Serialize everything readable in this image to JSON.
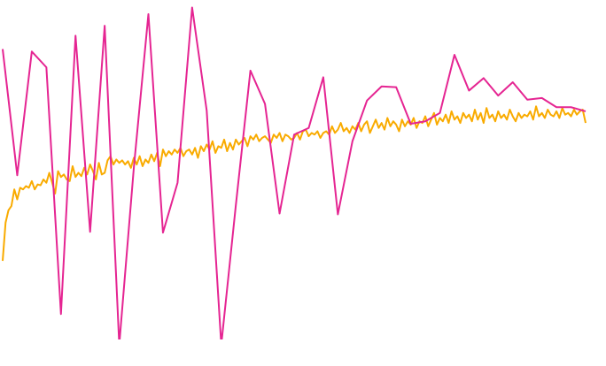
{
  "chart_data": {
    "type": "line",
    "xlim": [
      0,
      200
    ],
    "xticks": [
      0,
      50,
      100,
      150,
      200
    ],
    "ylim": [
      -0.106,
      3.98
    ],
    "yticks": [
      0,
      1,
      2,
      3
    ],
    "grid": true,
    "series": [
      {
        "color": "#f9ab00",
        "x": [
          0,
          1,
          2,
          3,
          4,
          5,
          6,
          7,
          8,
          9,
          10,
          11,
          12,
          13,
          14,
          15,
          16,
          17,
          18,
          19,
          20,
          21,
          22,
          23,
          24,
          25,
          26,
          27,
          28,
          29,
          30,
          31,
          32,
          33,
          34,
          35,
          36,
          37,
          38,
          39,
          40,
          41,
          42,
          43,
          44,
          45,
          46,
          47,
          48,
          49,
          50,
          51,
          52,
          53,
          54,
          55,
          56,
          57,
          58,
          59,
          60,
          61,
          62,
          63,
          64,
          65,
          66,
          67,
          68,
          69,
          70,
          71,
          72,
          73,
          74,
          75,
          76,
          77,
          78,
          79,
          80,
          81,
          82,
          83,
          84,
          85,
          86,
          87,
          88,
          89,
          90,
          91,
          92,
          93,
          94,
          95,
          96,
          97,
          98,
          99,
          100,
          101,
          102,
          103,
          104,
          105,
          106,
          107,
          108,
          109,
          110,
          111,
          112,
          113,
          114,
          115,
          116,
          117,
          118,
          119,
          120,
          121,
          122,
          123,
          124,
          125,
          126,
          127,
          128,
          129,
          130,
          131,
          132,
          133,
          134,
          135,
          136,
          137,
          138,
          139,
          140,
          141,
          142,
          143,
          144,
          145,
          146,
          147,
          148,
          149,
          150,
          151,
          152,
          153,
          154,
          155,
          156,
          157,
          158,
          159,
          160,
          161,
          162,
          163,
          164,
          165,
          166,
          167,
          168,
          169,
          170,
          171,
          172,
          173,
          174,
          175,
          176,
          177,
          178,
          179,
          180,
          181,
          182,
          183,
          184,
          185,
          186,
          187,
          188,
          189,
          190,
          191,
          192,
          193,
          194,
          195,
          196,
          197,
          198,
          199,
          200
        ],
        "values": [
          0.84,
          1.3,
          1.45,
          1.5,
          1.7,
          1.58,
          1.72,
          1.7,
          1.74,
          1.72,
          1.8,
          1.7,
          1.76,
          1.75,
          1.82,
          1.78,
          1.9,
          1.78,
          1.65,
          1.92,
          1.85,
          1.88,
          1.82,
          1.8,
          1.98,
          1.85,
          1.9,
          1.86,
          1.96,
          1.88,
          2.0,
          1.92,
          1.82,
          2.02,
          1.88,
          1.9,
          2.05,
          2.1,
          2.0,
          2.06,
          2.02,
          2.05,
          2.0,
          2.04,
          1.96,
          2.08,
          2.0,
          2.1,
          1.98,
          2.06,
          2.02,
          2.12,
          2.04,
          2.14,
          1.98,
          2.18,
          2.1,
          2.16,
          2.12,
          2.18,
          2.14,
          2.2,
          2.1,
          2.16,
          2.18,
          2.12,
          2.2,
          2.08,
          2.22,
          2.16,
          2.24,
          2.18,
          2.28,
          2.14,
          2.22,
          2.2,
          2.3,
          2.16,
          2.26,
          2.18,
          2.3,
          2.24,
          2.28,
          2.32,
          2.22,
          2.34,
          2.3,
          2.36,
          2.28,
          2.32,
          2.34,
          2.3,
          2.26,
          2.36,
          2.32,
          2.38,
          2.28,
          2.36,
          2.34,
          2.3,
          2.32,
          2.38,
          2.3,
          2.4,
          2.42,
          2.34,
          2.38,
          2.36,
          2.4,
          2.32,
          2.38,
          2.4,
          2.36,
          2.46,
          2.38,
          2.42,
          2.5,
          2.4,
          2.44,
          2.38,
          2.46,
          2.42,
          2.5,
          2.4,
          2.48,
          2.52,
          2.38,
          2.46,
          2.54,
          2.44,
          2.5,
          2.42,
          2.56,
          2.46,
          2.52,
          2.48,
          2.4,
          2.54,
          2.46,
          2.52,
          2.48,
          2.56,
          2.44,
          2.52,
          2.5,
          2.58,
          2.46,
          2.54,
          2.62,
          2.48,
          2.56,
          2.52,
          2.6,
          2.5,
          2.64,
          2.54,
          2.58,
          2.5,
          2.62,
          2.56,
          2.6,
          2.52,
          2.66,
          2.54,
          2.62,
          2.5,
          2.68,
          2.56,
          2.6,
          2.52,
          2.64,
          2.56,
          2.6,
          2.54,
          2.66,
          2.58,
          2.52,
          2.62,
          2.56,
          2.6,
          2.58,
          2.64,
          2.54,
          2.7,
          2.58,
          2.62,
          2.56,
          2.66,
          2.6,
          2.58,
          2.64,
          2.56,
          2.68,
          2.6,
          2.62,
          2.58,
          2.66,
          2.6,
          2.64,
          2.66,
          2.5
        ]
      },
      {
        "color": "#e52592",
        "x": [
          0,
          5,
          10,
          15,
          20,
          25,
          30,
          35,
          40,
          45,
          50,
          55,
          60,
          65,
          70,
          75,
          80,
          85,
          90,
          95,
          100,
          105,
          110,
          115,
          120,
          125,
          130,
          135,
          140,
          145,
          150,
          155,
          160,
          165,
          170,
          175,
          180,
          185,
          190,
          195,
          200
        ],
        "values": [
          3.39,
          1.87,
          3.36,
          3.17,
          0.2,
          3.55,
          1.19,
          3.67,
          -0.17,
          1.96,
          3.81,
          1.18,
          1.78,
          3.89,
          2.65,
          -0.17,
          1.51,
          3.13,
          2.73,
          1.41,
          2.36,
          2.44,
          3.05,
          1.4,
          2.28,
          2.77,
          2.94,
          2.93,
          2.49,
          2.52,
          2.62,
          3.32,
          2.89,
          3.04,
          2.83,
          2.99,
          2.78,
          2.8,
          2.69,
          2.69,
          2.64
        ]
      }
    ]
  }
}
